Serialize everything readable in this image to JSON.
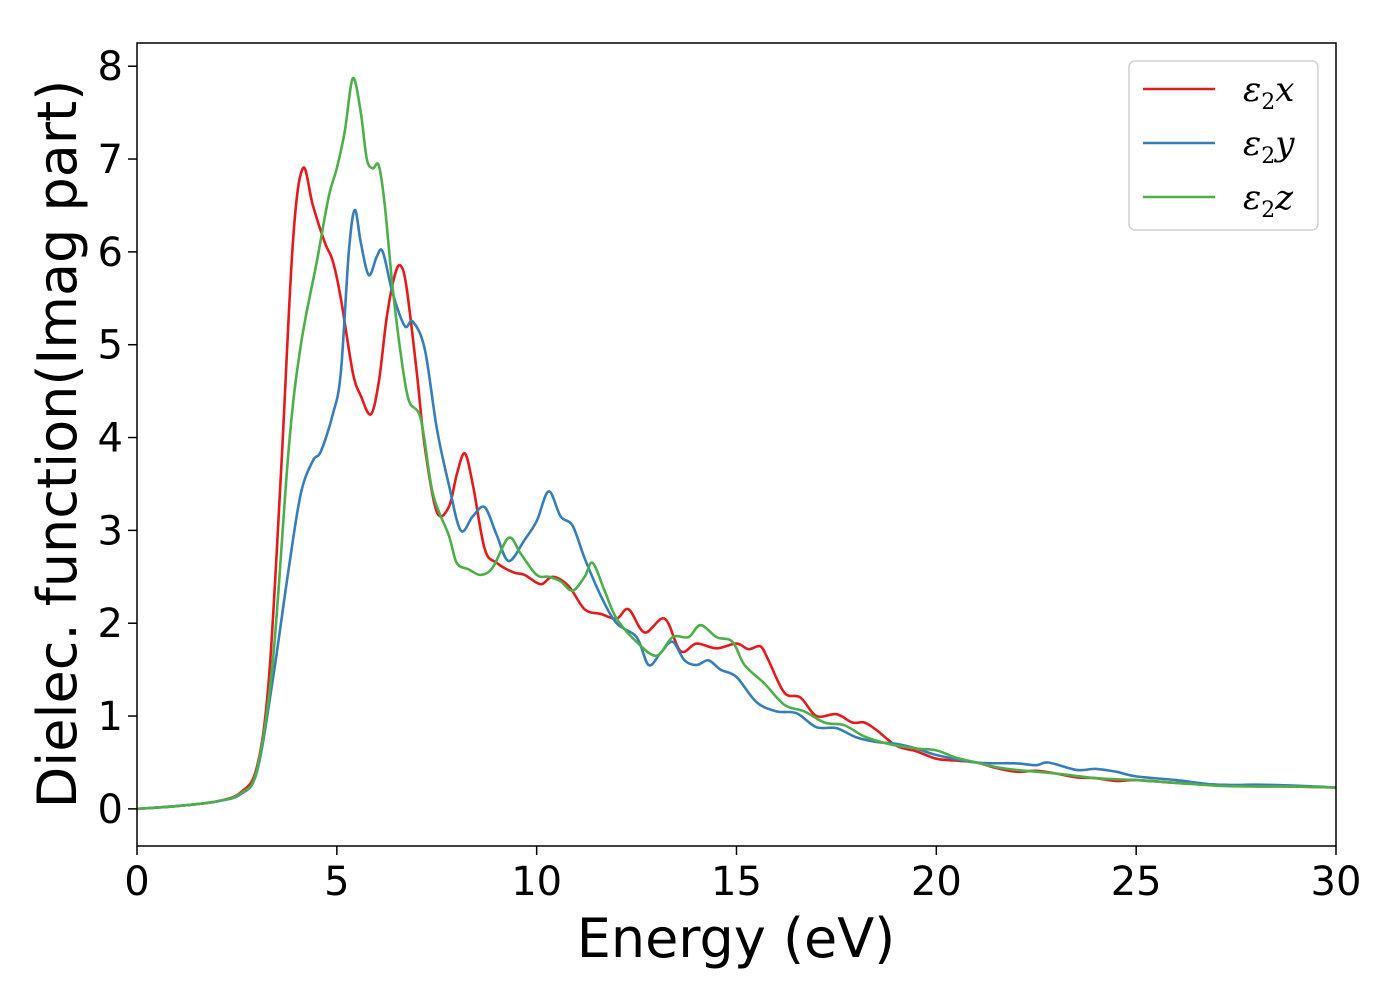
{
  "chart_data": {
    "type": "line",
    "xlabel": "Energy (eV)",
    "ylabel": "Dielec. function(Imag part)",
    "xlim": [
      0,
      30
    ],
    "ylim": [
      -0.4,
      8.25
    ],
    "xticks": [
      0,
      5,
      10,
      15,
      20,
      25,
      30
    ],
    "yticks": [
      0,
      1,
      2,
      3,
      4,
      5,
      6,
      7,
      8
    ],
    "legend_position": "top-right",
    "grid": false,
    "series": [
      {
        "name": "ε2x",
        "name_base": "ε",
        "name_sub": "2",
        "name_var": "x",
        "color": "#e41a1c",
        "points": [
          [
            0,
            0
          ],
          [
            1,
            0.03
          ],
          [
            2,
            0.08
          ],
          [
            2.6,
            0.18
          ],
          [
            3.0,
            0.45
          ],
          [
            3.3,
            1.4
          ],
          [
            3.6,
            3.6
          ],
          [
            3.9,
            6.1
          ],
          [
            4.15,
            6.9
          ],
          [
            4.4,
            6.5
          ],
          [
            4.7,
            6.1
          ],
          [
            4.9,
            5.9
          ],
          [
            5.1,
            5.5
          ],
          [
            5.4,
            4.7
          ],
          [
            5.6,
            4.45
          ],
          [
            5.85,
            4.25
          ],
          [
            6.05,
            4.6
          ],
          [
            6.25,
            5.3
          ],
          [
            6.45,
            5.75
          ],
          [
            6.6,
            5.85
          ],
          [
            6.75,
            5.6
          ],
          [
            7.0,
            4.7
          ],
          [
            7.2,
            3.9
          ],
          [
            7.5,
            3.2
          ],
          [
            7.8,
            3.25
          ],
          [
            8.0,
            3.6
          ],
          [
            8.2,
            3.83
          ],
          [
            8.4,
            3.5
          ],
          [
            8.7,
            2.8
          ],
          [
            9.0,
            2.65
          ],
          [
            9.4,
            2.55
          ],
          [
            9.7,
            2.52
          ],
          [
            10.1,
            2.42
          ],
          [
            10.4,
            2.5
          ],
          [
            10.8,
            2.4
          ],
          [
            11.2,
            2.15
          ],
          [
            11.6,
            2.1
          ],
          [
            12.0,
            2.05
          ],
          [
            12.3,
            2.15
          ],
          [
            12.7,
            1.9
          ],
          [
            13.2,
            2.05
          ],
          [
            13.6,
            1.7
          ],
          [
            14.0,
            1.78
          ],
          [
            14.5,
            1.73
          ],
          [
            15.0,
            1.78
          ],
          [
            15.3,
            1.72
          ],
          [
            15.6,
            1.75
          ],
          [
            15.8,
            1.6
          ],
          [
            16.2,
            1.25
          ],
          [
            16.6,
            1.2
          ],
          [
            17.0,
            1.0
          ],
          [
            17.5,
            1.02
          ],
          [
            17.9,
            0.93
          ],
          [
            18.2,
            0.93
          ],
          [
            18.5,
            0.85
          ],
          [
            19.0,
            0.68
          ],
          [
            19.5,
            0.62
          ],
          [
            20.0,
            0.54
          ],
          [
            20.5,
            0.52
          ],
          [
            21.0,
            0.5
          ],
          [
            21.5,
            0.44
          ],
          [
            22.0,
            0.4
          ],
          [
            22.5,
            0.41
          ],
          [
            23.0,
            0.38
          ],
          [
            23.5,
            0.34
          ],
          [
            24.0,
            0.33
          ],
          [
            24.5,
            0.3
          ],
          [
            25.0,
            0.31
          ],
          [
            26.0,
            0.28
          ],
          [
            27.0,
            0.26
          ],
          [
            28.0,
            0.25
          ],
          [
            29.0,
            0.24
          ],
          [
            30.0,
            0.23
          ]
        ]
      },
      {
        "name": "ε2y",
        "name_base": "ε",
        "name_sub": "2",
        "name_var": "y",
        "color": "#377eb8",
        "points": [
          [
            0,
            0
          ],
          [
            1,
            0.03
          ],
          [
            2,
            0.08
          ],
          [
            2.6,
            0.16
          ],
          [
            3.0,
            0.4
          ],
          [
            3.4,
            1.4
          ],
          [
            3.8,
            2.6
          ],
          [
            4.1,
            3.4
          ],
          [
            4.4,
            3.75
          ],
          [
            4.6,
            3.85
          ],
          [
            4.9,
            4.25
          ],
          [
            5.1,
            4.7
          ],
          [
            5.3,
            6.0
          ],
          [
            5.45,
            6.45
          ],
          [
            5.6,
            6.1
          ],
          [
            5.8,
            5.75
          ],
          [
            6.0,
            5.95
          ],
          [
            6.15,
            6.0
          ],
          [
            6.4,
            5.55
          ],
          [
            6.7,
            5.2
          ],
          [
            6.9,
            5.25
          ],
          [
            7.2,
            4.95
          ],
          [
            7.5,
            4.1
          ],
          [
            7.8,
            3.5
          ],
          [
            8.1,
            3.0
          ],
          [
            8.4,
            3.15
          ],
          [
            8.7,
            3.25
          ],
          [
            9.0,
            2.95
          ],
          [
            9.3,
            2.67
          ],
          [
            9.7,
            2.9
          ],
          [
            10.0,
            3.1
          ],
          [
            10.3,
            3.42
          ],
          [
            10.6,
            3.15
          ],
          [
            10.9,
            3.05
          ],
          [
            11.2,
            2.7
          ],
          [
            11.6,
            2.3
          ],
          [
            12.0,
            2.0
          ],
          [
            12.5,
            1.85
          ],
          [
            12.8,
            1.55
          ],
          [
            13.1,
            1.68
          ],
          [
            13.4,
            1.8
          ],
          [
            13.7,
            1.6
          ],
          [
            14.0,
            1.55
          ],
          [
            14.3,
            1.6
          ],
          [
            14.6,
            1.5
          ],
          [
            15.0,
            1.42
          ],
          [
            15.5,
            1.15
          ],
          [
            16.0,
            1.05
          ],
          [
            16.5,
            1.03
          ],
          [
            17.0,
            0.88
          ],
          [
            17.5,
            0.87
          ],
          [
            18.0,
            0.77
          ],
          [
            18.5,
            0.72
          ],
          [
            19.0,
            0.7
          ],
          [
            19.5,
            0.65
          ],
          [
            20.0,
            0.58
          ],
          [
            21.0,
            0.5
          ],
          [
            22.0,
            0.49
          ],
          [
            22.5,
            0.47
          ],
          [
            22.8,
            0.5
          ],
          [
            23.5,
            0.42
          ],
          [
            24.0,
            0.43
          ],
          [
            24.5,
            0.4
          ],
          [
            25.0,
            0.35
          ],
          [
            26.0,
            0.31
          ],
          [
            27.0,
            0.26
          ],
          [
            28.0,
            0.26
          ],
          [
            29.0,
            0.25
          ],
          [
            30.0,
            0.23
          ]
        ]
      },
      {
        "name": "ε2z",
        "name_base": "ε",
        "name_sub": "2",
        "name_var": "z",
        "color": "#4daf4a",
        "points": [
          [
            0,
            0
          ],
          [
            1,
            0.03
          ],
          [
            2,
            0.08
          ],
          [
            2.6,
            0.17
          ],
          [
            3.0,
            0.42
          ],
          [
            3.4,
            1.6
          ],
          [
            3.8,
            3.9
          ],
          [
            4.1,
            5.0
          ],
          [
            4.5,
            5.9
          ],
          [
            4.8,
            6.6
          ],
          [
            5.0,
            6.9
          ],
          [
            5.2,
            7.3
          ],
          [
            5.4,
            7.87
          ],
          [
            5.6,
            7.5
          ],
          [
            5.75,
            7.0
          ],
          [
            5.9,
            6.9
          ],
          [
            6.05,
            6.93
          ],
          [
            6.2,
            6.5
          ],
          [
            6.4,
            5.6
          ],
          [
            6.6,
            4.9
          ],
          [
            6.8,
            4.4
          ],
          [
            7.1,
            4.2
          ],
          [
            7.4,
            3.4
          ],
          [
            7.8,
            2.95
          ],
          [
            8.0,
            2.65
          ],
          [
            8.3,
            2.58
          ],
          [
            8.6,
            2.52
          ],
          [
            8.9,
            2.6
          ],
          [
            9.3,
            2.92
          ],
          [
            9.6,
            2.75
          ],
          [
            10.0,
            2.52
          ],
          [
            10.3,
            2.5
          ],
          [
            10.6,
            2.45
          ],
          [
            10.9,
            2.35
          ],
          [
            11.2,
            2.5
          ],
          [
            11.4,
            2.65
          ],
          [
            11.7,
            2.35
          ],
          [
            12.0,
            2.05
          ],
          [
            12.5,
            1.8
          ],
          [
            13.0,
            1.65
          ],
          [
            13.4,
            1.85
          ],
          [
            13.8,
            1.85
          ],
          [
            14.1,
            1.98
          ],
          [
            14.5,
            1.85
          ],
          [
            14.9,
            1.8
          ],
          [
            15.2,
            1.55
          ],
          [
            15.7,
            1.35
          ],
          [
            16.2,
            1.12
          ],
          [
            16.7,
            1.05
          ],
          [
            17.2,
            0.93
          ],
          [
            17.7,
            0.9
          ],
          [
            18.2,
            0.78
          ],
          [
            18.8,
            0.7
          ],
          [
            19.5,
            0.65
          ],
          [
            20.0,
            0.63
          ],
          [
            20.5,
            0.55
          ],
          [
            21.0,
            0.5
          ],
          [
            21.5,
            0.45
          ],
          [
            22.0,
            0.42
          ],
          [
            23.0,
            0.38
          ],
          [
            24.0,
            0.33
          ],
          [
            25.0,
            0.31
          ],
          [
            26.0,
            0.28
          ],
          [
            27.0,
            0.25
          ],
          [
            28.0,
            0.24
          ],
          [
            29.0,
            0.24
          ],
          [
            30.0,
            0.23
          ]
        ]
      }
    ]
  }
}
